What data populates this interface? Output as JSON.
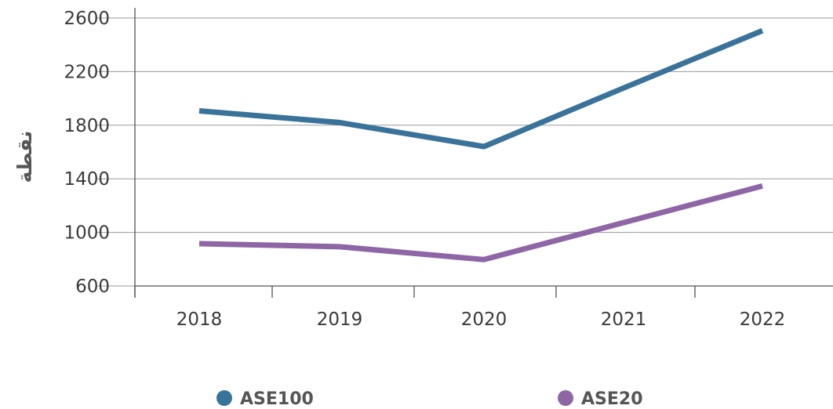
{
  "chart_data": {
    "type": "line",
    "categories": [
      "2018",
      "2019",
      "2020",
      "2021",
      "2022"
    ],
    "series": [
      {
        "name": "ASE100",
        "values": [
          1907,
          1820,
          1641,
          2078,
          2506
        ],
        "color": "#3a7399"
      },
      {
        "name": "ASE20",
        "values": [
          916,
          893,
          797,
          1073,
          1346
        ],
        "color": "#8e66a5"
      }
    ],
    "ylabel": "نقطة",
    "ylim": [
      600,
      2600
    ],
    "yticks": [
      600,
      1000,
      1400,
      1800,
      2200,
      2600
    ],
    "grid": true,
    "legend_position": "bottom"
  }
}
